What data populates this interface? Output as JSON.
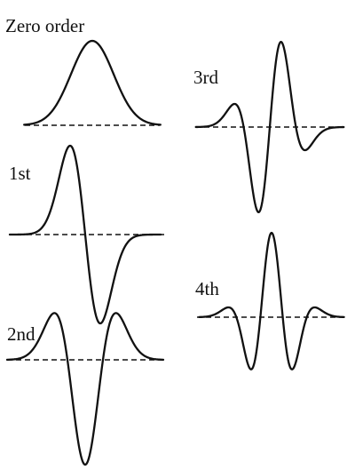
{
  "panels": [
    {
      "id": "zero",
      "label": "Zero order"
    },
    {
      "id": "first",
      "label": "1st"
    },
    {
      "id": "second",
      "label": "2nd"
    },
    {
      "id": "third",
      "label": "3rd"
    },
    {
      "id": "fourth",
      "label": "4th"
    }
  ]
}
